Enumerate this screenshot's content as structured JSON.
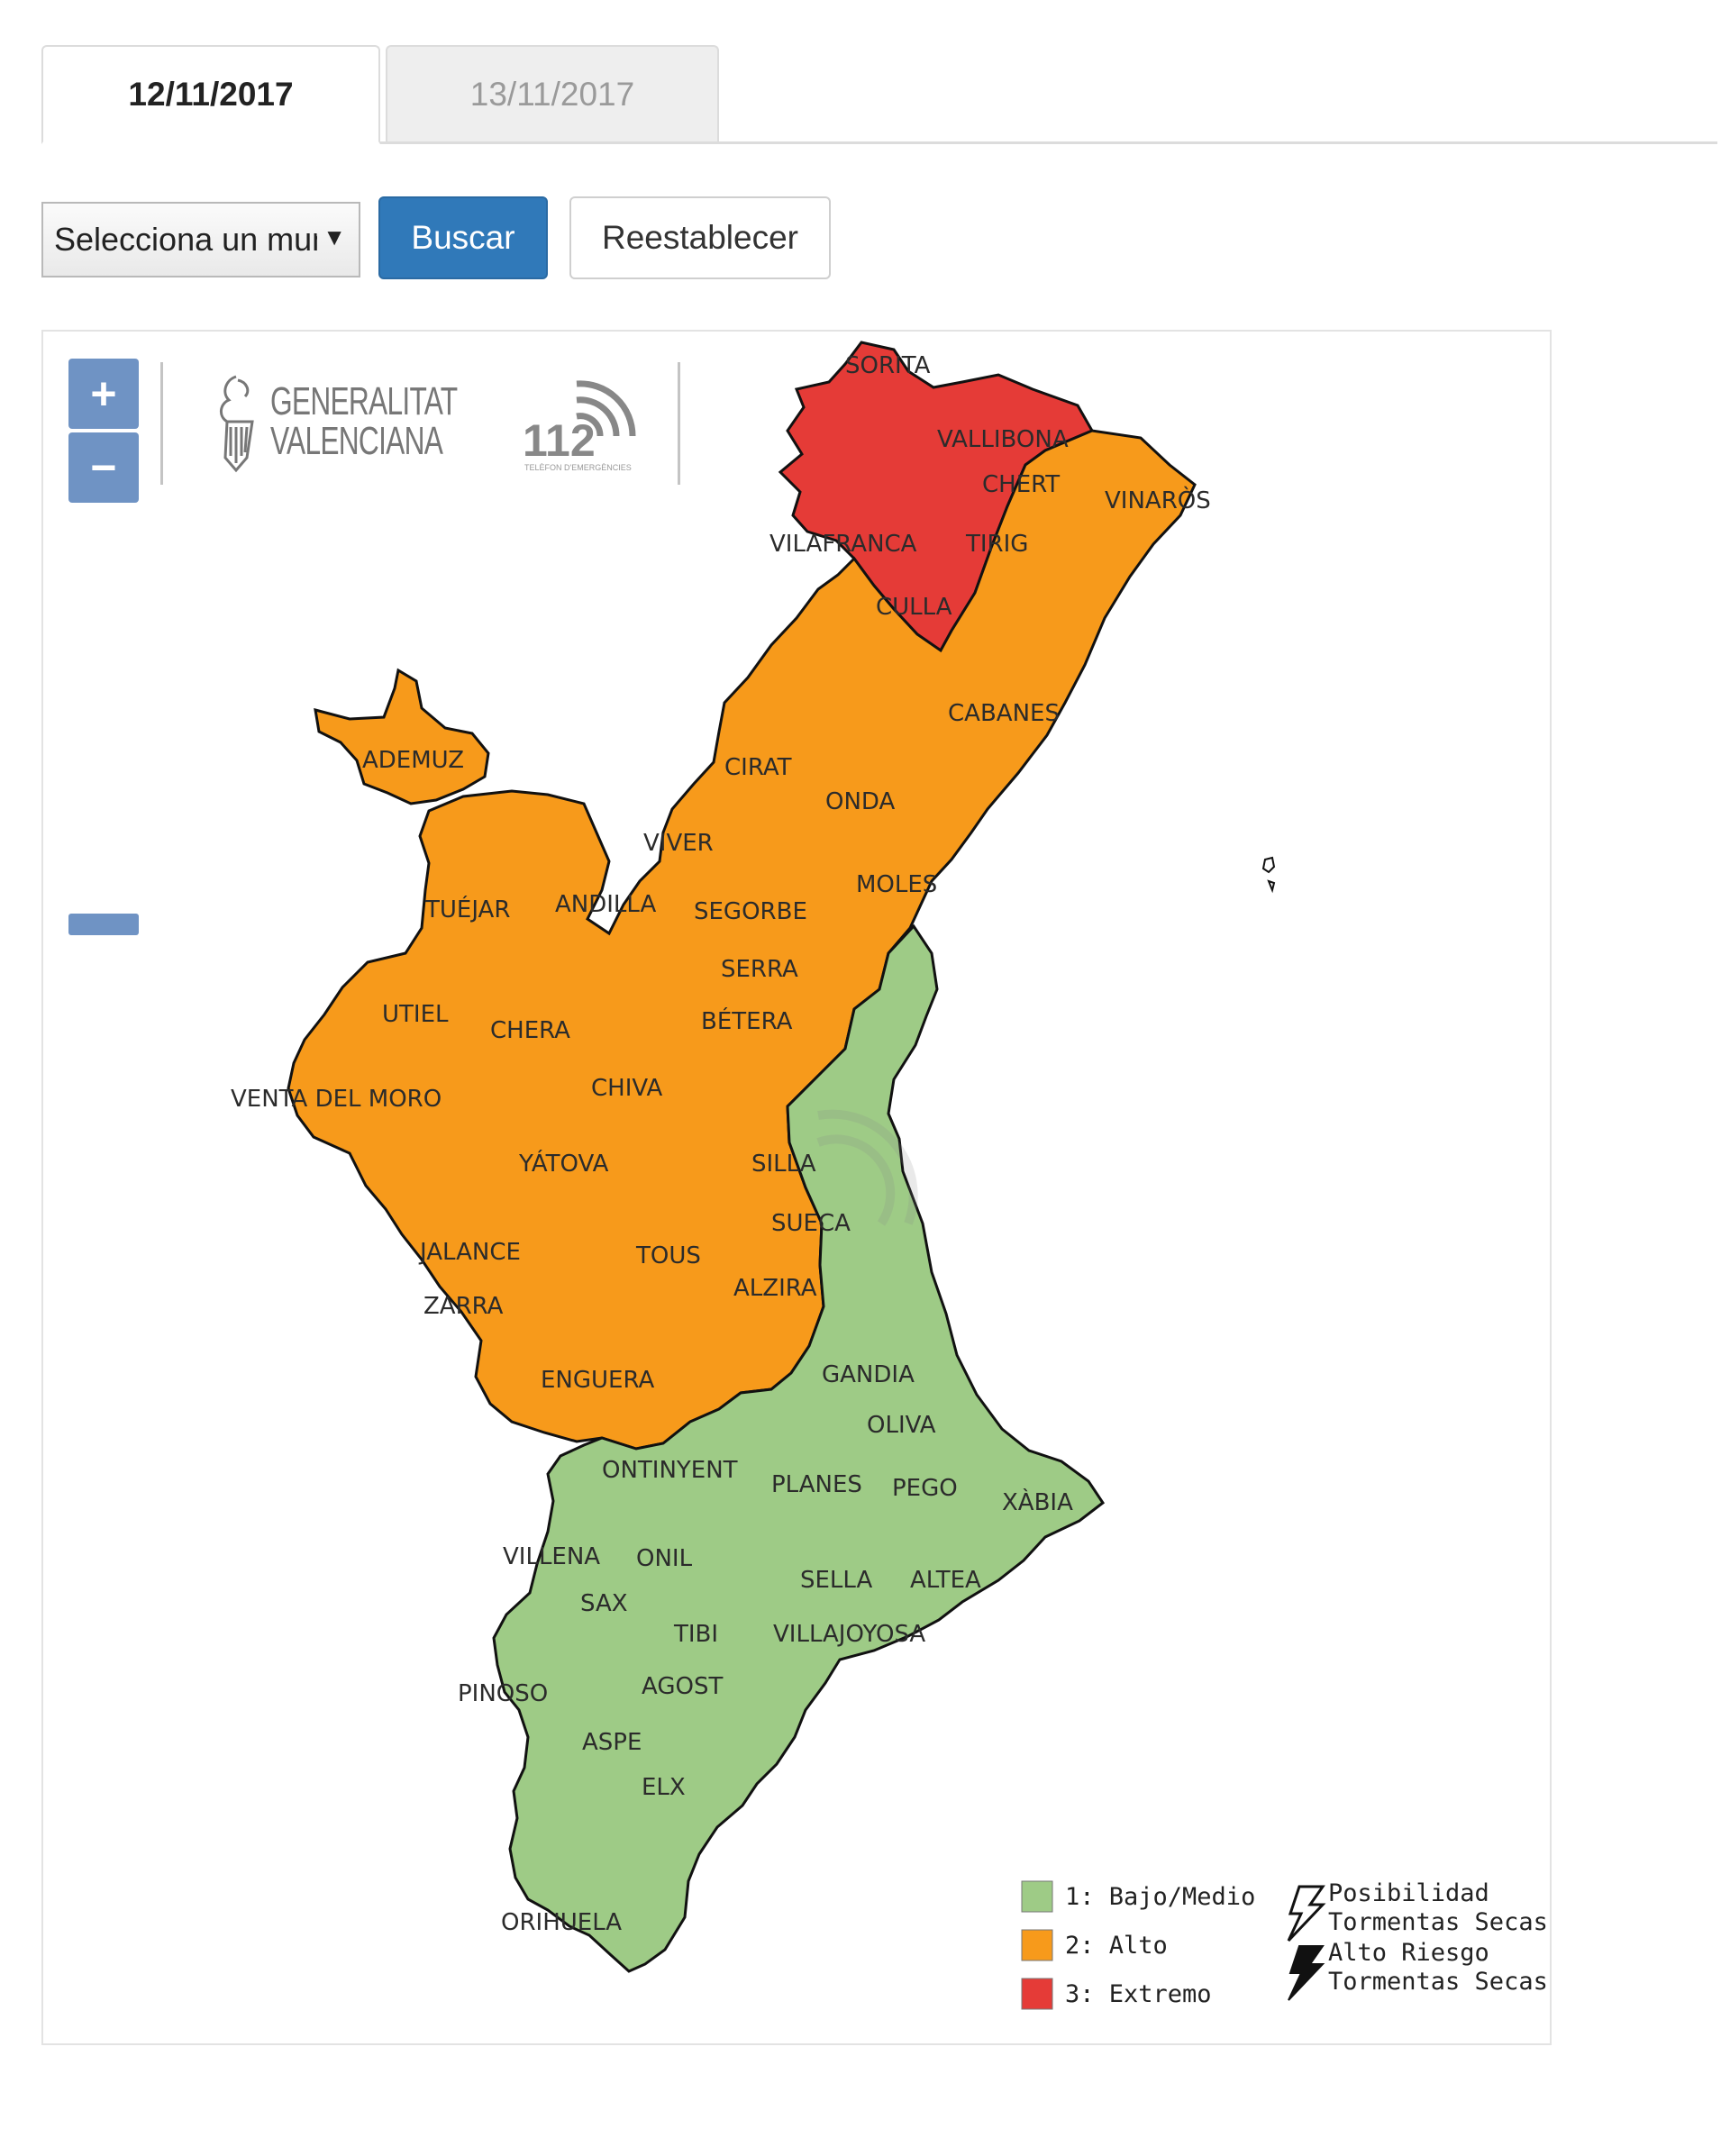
{
  "tabs": [
    {
      "label": "12/11/2017",
      "active": true
    },
    {
      "label": "13/11/2017",
      "active": false
    }
  ],
  "toolbar": {
    "select_value": "Selecciona un municipio",
    "search_label": "Buscar",
    "reset_label": "Reestablecer"
  },
  "map": {
    "zoom_in": "+",
    "zoom_out": "−",
    "logo_text_line1": "GENERALITAT",
    "logo_text_line2": "VALENCIANA",
    "logo_112": "112",
    "logo_112_sub": "TELÈFON D'EMERGÈNCIES",
    "levels": {
      "low": {
        "color": "#9ecb86",
        "label": "1: Bajo/Medio"
      },
      "high": {
        "color": "#f79a1b",
        "label": "2: Alto"
      },
      "extreme": {
        "color": "#e53b37",
        "label": "3: Extremo"
      }
    },
    "storm_legend": {
      "possible_line1": "Posibilidad",
      "possible_line2": "Tormentas Secas",
      "high_line1": "Alto Riesgo",
      "high_line2": "Tormentas Secas"
    },
    "municipalities": [
      "SORITA",
      "VALLIBONA",
      "CHERT",
      "VINARÒS",
      "VILAFRANCA",
      "TIRIG",
      "CULLA",
      "CABANES",
      "ADEMUZ",
      "CIRAT",
      "ONDA",
      "VIVER",
      "MOLES",
      "TUÉJAR",
      "ANDILLA",
      "SEGORBE",
      "SERRA",
      "BÉTERA",
      "UTIEL",
      "CHERA",
      "VENTA DEL MORO",
      "CHIVA",
      "YÁTOVA",
      "SILLA",
      "SUECA",
      "JALANCE",
      "TOUS",
      "ALZIRA",
      "ZARRA",
      "GANDIA",
      "ENGUERA",
      "OLIVA",
      "ONTINYENT",
      "PLANES",
      "PEGO",
      "XÀBIA",
      "VILLENA",
      "ONIL",
      "SELLA",
      "ALTEA",
      "SAX",
      "TIBI",
      "VILLAJOYOSA",
      "AGOST",
      "PINOSO",
      "ASPE",
      "ELX",
      "ORIHUELA"
    ]
  }
}
